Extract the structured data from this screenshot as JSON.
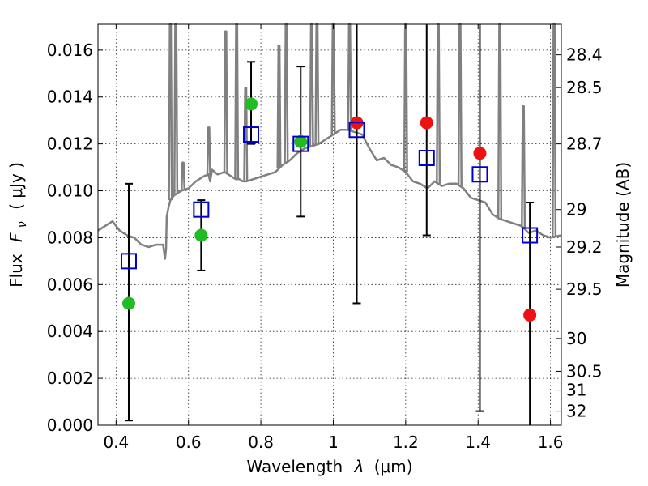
{
  "chart_data": {
    "type": "scatter",
    "xlabel_text": "Wavelength",
    "xlabel_symbol": "λ",
    "xlabel_unit": "(μm)",
    "ylabel_text": "Flux",
    "ylabel_symbol": "F",
    "ylabel_sub": "ν",
    "ylabel_unit": "( μJy )",
    "y2label": "Magnitude (AB)",
    "xlim": [
      0.35,
      1.63
    ],
    "ylim": [
      0.0,
      0.0171
    ],
    "x_ticks": [
      0.4,
      0.6,
      0.8,
      1.0,
      1.2,
      1.4,
      1.6
    ],
    "x_tick_labels": [
      "0.4",
      "0.6",
      "0.8",
      "1",
      "1.2",
      "1.4",
      "1.6"
    ],
    "y_ticks": [
      0.0,
      0.002,
      0.004,
      0.006,
      0.008,
      0.01,
      0.012,
      0.014,
      0.016
    ],
    "y_tick_labels": [
      "0.000",
      "0.002",
      "0.004",
      "0.006",
      "0.008",
      "0.010",
      "0.012",
      "0.014",
      "0.016"
    ],
    "y2_ticks": [
      {
        "label": "28.4",
        "flux": 0.0158
      },
      {
        "label": "28.5",
        "flux": 0.0144
      },
      {
        "label": "28.7",
        "flux": 0.012
      },
      {
        "label": "29",
        "flux": 0.0092
      },
      {
        "label": "29.2",
        "flux": 0.0076
      },
      {
        "label": "29.5",
        "flux": 0.0058
      },
      {
        "label": "30",
        "flux": 0.0037
      },
      {
        "label": "30.5",
        "flux": 0.0023
      },
      {
        "label": "31",
        "flux": 0.0015
      },
      {
        "label": "32",
        "flux": 0.0006
      }
    ],
    "grid": true,
    "colors": {
      "spectrum": "#808080",
      "green": "#22bb22",
      "red": "#ee1111",
      "model_box": "#0000cc",
      "errorbar": "#000000"
    },
    "spectrum": {
      "name": "",
      "x": [
        0.35,
        0.37,
        0.39,
        0.41,
        0.43,
        0.45,
        0.47,
        0.49,
        0.51,
        0.53,
        0.535,
        0.538,
        0.54,
        0.545,
        0.55,
        0.56,
        0.58,
        0.6,
        0.62,
        0.64,
        0.655,
        0.66,
        0.665,
        0.68,
        0.7,
        0.72,
        0.73,
        0.74,
        0.75,
        0.76,
        0.78,
        0.8,
        0.82,
        0.84,
        0.86,
        0.88,
        0.9,
        0.92,
        0.94,
        0.96,
        0.98,
        1.0,
        1.02,
        1.04,
        1.06,
        1.08,
        1.1,
        1.12,
        1.14,
        1.16,
        1.18,
        1.2,
        1.22,
        1.24,
        1.26,
        1.28,
        1.3,
        1.32,
        1.34,
        1.36,
        1.38,
        1.4,
        1.42,
        1.44,
        1.46,
        1.48,
        1.5,
        1.52,
        1.54,
        1.56,
        1.58,
        1.6,
        1.63
      ],
      "y": [
        0.0083,
        0.0085,
        0.0087,
        0.0083,
        0.0081,
        0.008,
        0.0077,
        0.0076,
        0.0077,
        0.0077,
        0.0071,
        0.0075,
        0.0089,
        0.0093,
        0.0096,
        0.0098,
        0.01,
        0.0101,
        0.0104,
        0.0106,
        0.0107,
        0.0104,
        0.0109,
        0.0107,
        0.0108,
        0.0106,
        0.0105,
        0.0105,
        0.0104,
        0.0104,
        0.0105,
        0.0106,
        0.0107,
        0.0108,
        0.0111,
        0.0113,
        0.0116,
        0.0118,
        0.0119,
        0.012,
        0.0122,
        0.0124,
        0.0126,
        0.0126,
        0.0125,
        0.0124,
        0.0118,
        0.0113,
        0.0114,
        0.0111,
        0.011,
        0.0108,
        0.0104,
        0.0103,
        0.0101,
        0.0104,
        0.0102,
        0.0103,
        0.0103,
        0.0101,
        0.0097,
        0.0096,
        0.0095,
        0.009,
        0.0088,
        0.0087,
        0.0086,
        0.0085,
        0.0082,
        0.0083,
        0.0081,
        0.008,
        0.0081
      ]
    },
    "spikes": [
      {
        "x": 0.55,
        "top": 0.0171
      },
      {
        "x": 0.565,
        "top": 0.0171
      },
      {
        "x": 0.585,
        "top": 0.0112
      },
      {
        "x": 0.656,
        "top": 0.0127
      },
      {
        "x": 0.703,
        "top": 0.0168
      },
      {
        "x": 0.733,
        "top": 0.0171
      },
      {
        "x": 0.758,
        "top": 0.0144
      },
      {
        "x": 0.85,
        "top": 0.0162
      },
      {
        "x": 0.87,
        "top": 0.0171
      },
      {
        "x": 0.94,
        "top": 0.0171
      },
      {
        "x": 0.955,
        "top": 0.0171
      },
      {
        "x": 1.0,
        "top": 0.0171
      },
      {
        "x": 1.045,
        "top": 0.0171
      },
      {
        "x": 1.2,
        "top": 0.0171
      },
      {
        "x": 1.29,
        "top": 0.0171
      },
      {
        "x": 1.35,
        "top": 0.0171
      },
      {
        "x": 1.46,
        "top": 0.0171
      },
      {
        "x": 1.525,
        "top": 0.0136
      },
      {
        "x": 1.61,
        "top": 0.0171
      }
    ],
    "green_points": {
      "name": "",
      "x": [
        0.435,
        0.635,
        0.773,
        0.91
      ],
      "y": [
        0.0052,
        0.0081,
        0.0137,
        0.0121
      ]
    },
    "red_points": {
      "name": "",
      "x": [
        1.065,
        1.258,
        1.405,
        1.543
      ],
      "y": [
        0.0129,
        0.0129,
        0.0116,
        0.0047
      ]
    },
    "model_points": {
      "name": "",
      "x": [
        0.435,
        0.635,
        0.773,
        0.91,
        1.065,
        1.258,
        1.405,
        1.543
      ],
      "y": [
        0.007,
        0.0092,
        0.0124,
        0.012,
        0.0126,
        0.0114,
        0.0107,
        0.0081
      ]
    },
    "error_bars": [
      {
        "x": 0.435,
        "low": 0.0002,
        "high": 0.0103
      },
      {
        "x": 0.635,
        "low": 0.0066,
        "high": 0.0096
      },
      {
        "x": 0.773,
        "low": 0.012,
        "high": 0.0155
      },
      {
        "x": 0.91,
        "low": 0.0089,
        "high": 0.0153
      },
      {
        "x": 1.065,
        "low": 0.0052,
        "high": 0.0171
      },
      {
        "x": 1.258,
        "low": 0.0081,
        "high": 0.0171
      },
      {
        "x": 1.405,
        "low": 0.0006,
        "high": 0.0171
      },
      {
        "x": 1.543,
        "low": 0.0,
        "high": 0.0095
      }
    ]
  }
}
